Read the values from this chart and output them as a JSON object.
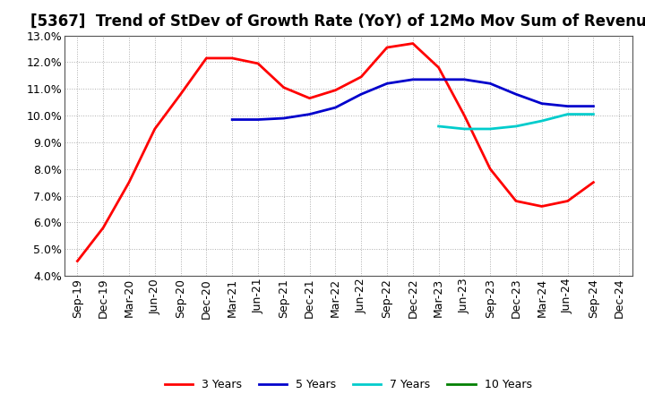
{
  "title": "[5367]  Trend of StDev of Growth Rate (YoY) of 12Mo Mov Sum of Revenues",
  "ylim": [
    0.04,
    0.13
  ],
  "yticks": [
    0.04,
    0.05,
    0.06,
    0.07,
    0.08,
    0.09,
    0.1,
    0.11,
    0.12,
    0.13
  ],
  "x_labels": [
    "Sep-19",
    "Dec-19",
    "Mar-20",
    "Jun-20",
    "Sep-20",
    "Dec-20",
    "Mar-21",
    "Jun-21",
    "Sep-21",
    "Dec-21",
    "Mar-22",
    "Jun-22",
    "Sep-22",
    "Dec-22",
    "Mar-23",
    "Jun-23",
    "Sep-23",
    "Dec-23",
    "Mar-24",
    "Jun-24",
    "Sep-24",
    "Dec-24"
  ],
  "series_3y": [
    0.0455,
    0.058,
    0.075,
    0.095,
    0.108,
    0.1215,
    0.1215,
    0.1195,
    0.1105,
    0.1065,
    0.1095,
    0.1145,
    0.1255,
    0.127,
    0.118,
    0.1,
    0.08,
    0.068,
    0.066,
    0.068,
    0.075,
    null
  ],
  "series_5y": [
    null,
    null,
    null,
    null,
    null,
    null,
    0.0985,
    0.0985,
    0.099,
    0.1005,
    0.103,
    0.108,
    0.112,
    0.1135,
    0.1135,
    0.1135,
    0.112,
    0.108,
    0.1045,
    0.1035,
    0.1035,
    null
  ],
  "series_7y": [
    null,
    null,
    null,
    null,
    null,
    null,
    null,
    null,
    null,
    null,
    null,
    null,
    null,
    null,
    0.096,
    0.095,
    0.095,
    0.096,
    0.098,
    0.1005,
    0.1005,
    null
  ],
  "series_10y": [],
  "color_3y": "#ff0000",
  "color_5y": "#0000cc",
  "color_7y": "#00cccc",
  "color_10y": "#008000",
  "background_color": "#ffffff",
  "plot_bg_color": "#ffffff",
  "grid_color": "#999999",
  "title_fontsize": 12,
  "tick_fontsize": 9,
  "legend_labels": [
    "3 Years",
    "5 Years",
    "7 Years",
    "10 Years"
  ]
}
